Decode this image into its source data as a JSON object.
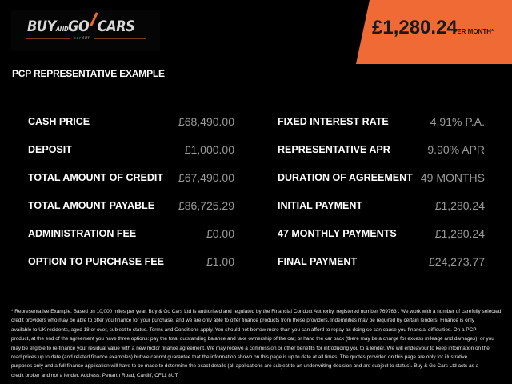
{
  "logo": {
    "text_main": "BUY",
    "text_and": "AND",
    "text_go": "GO",
    "text_cars": "CARS",
    "subtitle": "cardiff"
  },
  "header": {
    "price": "£1,280.24",
    "per_month": "PER MONTH*",
    "accent": "#f06a35"
  },
  "title": "PCP REPRESENTATIVE EXAMPLE",
  "left": [
    {
      "label": "CASH PRICE",
      "value": "£68,490.00"
    },
    {
      "label": "DEPOSIT",
      "value": "£1,000.00"
    },
    {
      "label": "TOTAL AMOUNT OF CREDIT",
      "value": "£67,490.00"
    },
    {
      "label": "TOTAL AMOUNT PAYABLE",
      "value": "£86,725.29"
    },
    {
      "label": "ADMINISTRATION FEE",
      "value": "£0.00"
    },
    {
      "label": "OPTION TO PURCHASE FEE",
      "value": "£1.00"
    }
  ],
  "right": [
    {
      "label": "FIXED INTEREST RATE",
      "value": "4.91% P.A."
    },
    {
      "label": "REPRESENTATIVE APR",
      "value": "9.90% APR"
    },
    {
      "label": "DURATION OF AGREEMENT",
      "value": "49 MONTHS"
    },
    {
      "label": "INITIAL PAYMENT",
      "value": "£1,280.24"
    },
    {
      "label": "47 MONTHLY PAYMENTS",
      "value": "£1,280.24"
    },
    {
      "label": "FINAL PAYMENT",
      "value": "£24,273.77"
    }
  ],
  "footer": [
    "* Representative Example. Based on 10,000 miles per year. Buy & Go Cars Ltd is authorised and regulated by the Financial Conduct Authority, registered number 769763 . We work with a number of carefully selected",
    "credit providers who may be able to offer you finance for your purchase, and we are only able to offer finance products from these providers. Indemnities may be required by certain lenders. Finance is only",
    "available to UK residents, aged 18 or over, subject to status. Terms and Conditions apply. You should not borrow more than you can afford to repay as doing so can cause you financial difficulties. On a PCP",
    "product, at the end of the agreement you have three options: pay the total outstanding balance and take ownership of the car; or hand the car back (there may be a charge for excess mileage and damages); or you",
    "may be eligible to re-finance your residual value with a new motor finance agreement. We may receive a commission or other benefits for introducing you to a lender. We will endeavour to keep information on the",
    "road prices up to date (and related finance examples) but we cannot guarantee that the information shown on this page is up to date at all times. The quotes provided on this page are only for illustrative",
    "purposes only and a full finance application will have to be made to determine the exact details (all applications are subject to an underwriting decision and are subject to status). Buy & Go Cars Ltd acts as a",
    "credit broker and not a lender. Address: Penarth Road, Cardiff, CF11 8UT"
  ]
}
